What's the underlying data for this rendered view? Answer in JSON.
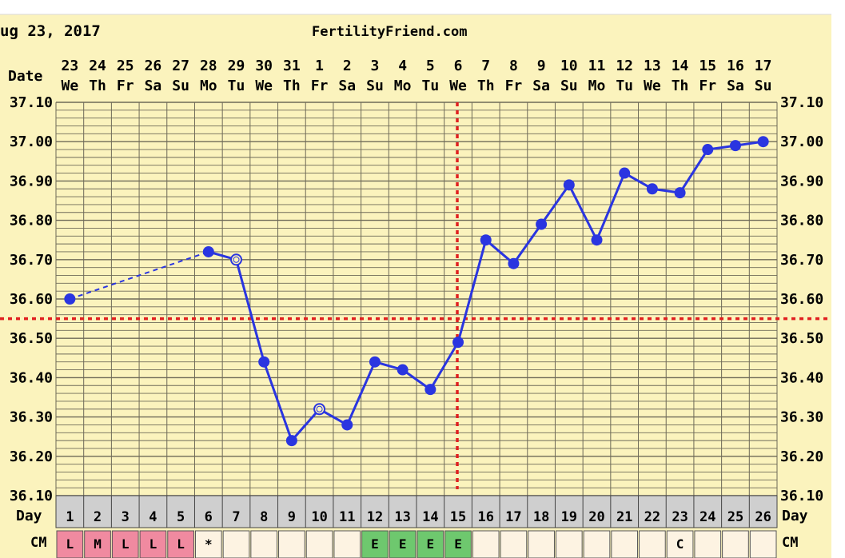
{
  "header": {
    "date_text": "ug 23, 2017",
    "site": "FertilityFriend.com"
  },
  "row_labels": {
    "date": "Date",
    "day": "Day",
    "cm": "CM"
  },
  "colors": {
    "background": "#fbf3bd",
    "grid": "#6e6a58",
    "line": "#2a35e0",
    "coverline": "#e02020",
    "day_row": "#cfcfcf",
    "cm_pink": "#f08aa0",
    "cm_green": "#6ec86e",
    "cm_empty": "#fdf3e2",
    "site_link": "#1c1cc8"
  },
  "chart_data": {
    "type": "line",
    "dates": [
      "23",
      "24",
      "25",
      "26",
      "27",
      "28",
      "29",
      "30",
      "31",
      "1",
      "2",
      "3",
      "4",
      "5",
      "6",
      "7",
      "8",
      "9",
      "10",
      "11",
      "12",
      "13",
      "14",
      "15",
      "16",
      "17"
    ],
    "weekdays": [
      "We",
      "Th",
      "Fr",
      "Sa",
      "Su",
      "Mo",
      "Tu",
      "We",
      "Th",
      "Fr",
      "Sa",
      "Su",
      "Mo",
      "Tu",
      "We",
      "Th",
      "Fr",
      "Sa",
      "Su",
      "Mo",
      "Tu",
      "We",
      "Th",
      "Fr",
      "Sa",
      "Su"
    ],
    "cycle_days": [
      "1",
      "2",
      "3",
      "4",
      "5",
      "6",
      "7",
      "8",
      "9",
      "10",
      "11",
      "12",
      "13",
      "14",
      "15",
      "16",
      "17",
      "18",
      "19",
      "20",
      "21",
      "22",
      "23",
      "24",
      "25",
      "26"
    ],
    "y_ticks": [
      "37.10",
      "37.00",
      "36.90",
      "36.80",
      "36.70",
      "36.60",
      "36.50",
      "36.40",
      "36.30",
      "36.20",
      "36.10"
    ],
    "y_ticks_left": [
      "37.10",
      "37.00",
      "36.90",
      "36.80",
      "36.70",
      "36.60",
      "36.50",
      "36.40",
      "36.30",
      "36.20",
      "36.10"
    ],
    "y_ticks_right": [
      "37.10",
      "37.00",
      "36.90",
      "36.80",
      "36.70",
      "36.60",
      "36.50",
      "36.40",
      "36.30",
      "36.20",
      "36.10"
    ],
    "ylim": [
      36.1,
      37.1
    ],
    "temperatures": [
      36.6,
      null,
      null,
      null,
      null,
      36.72,
      36.7,
      36.44,
      36.24,
      36.32,
      36.28,
      36.44,
      36.42,
      36.37,
      36.49,
      36.75,
      36.69,
      36.79,
      36.89,
      36.75,
      36.92,
      36.88,
      36.87,
      36.98,
      36.99,
      37.0
    ],
    "open_points": [
      7,
      10
    ],
    "dashed_segment": [
      1,
      6
    ],
    "coverline": 36.55,
    "ovulation_day": 15,
    "cm": [
      "L",
      "M",
      "L",
      "L",
      "L",
      "*",
      "",
      "",
      "",
      "",
      "",
      "E",
      "E",
      "E",
      "E",
      "",
      "",
      "",
      "",
      "",
      "",
      "",
      "C",
      "",
      "",
      ""
    ],
    "cm_colors": [
      "pink",
      "pink",
      "pink",
      "pink",
      "pink",
      "",
      "",
      "",
      "",
      "",
      "",
      "green",
      "green",
      "green",
      "green",
      "",
      "",
      "",
      "",
      "",
      "",
      "",
      "",
      "",
      "",
      ""
    ]
  }
}
